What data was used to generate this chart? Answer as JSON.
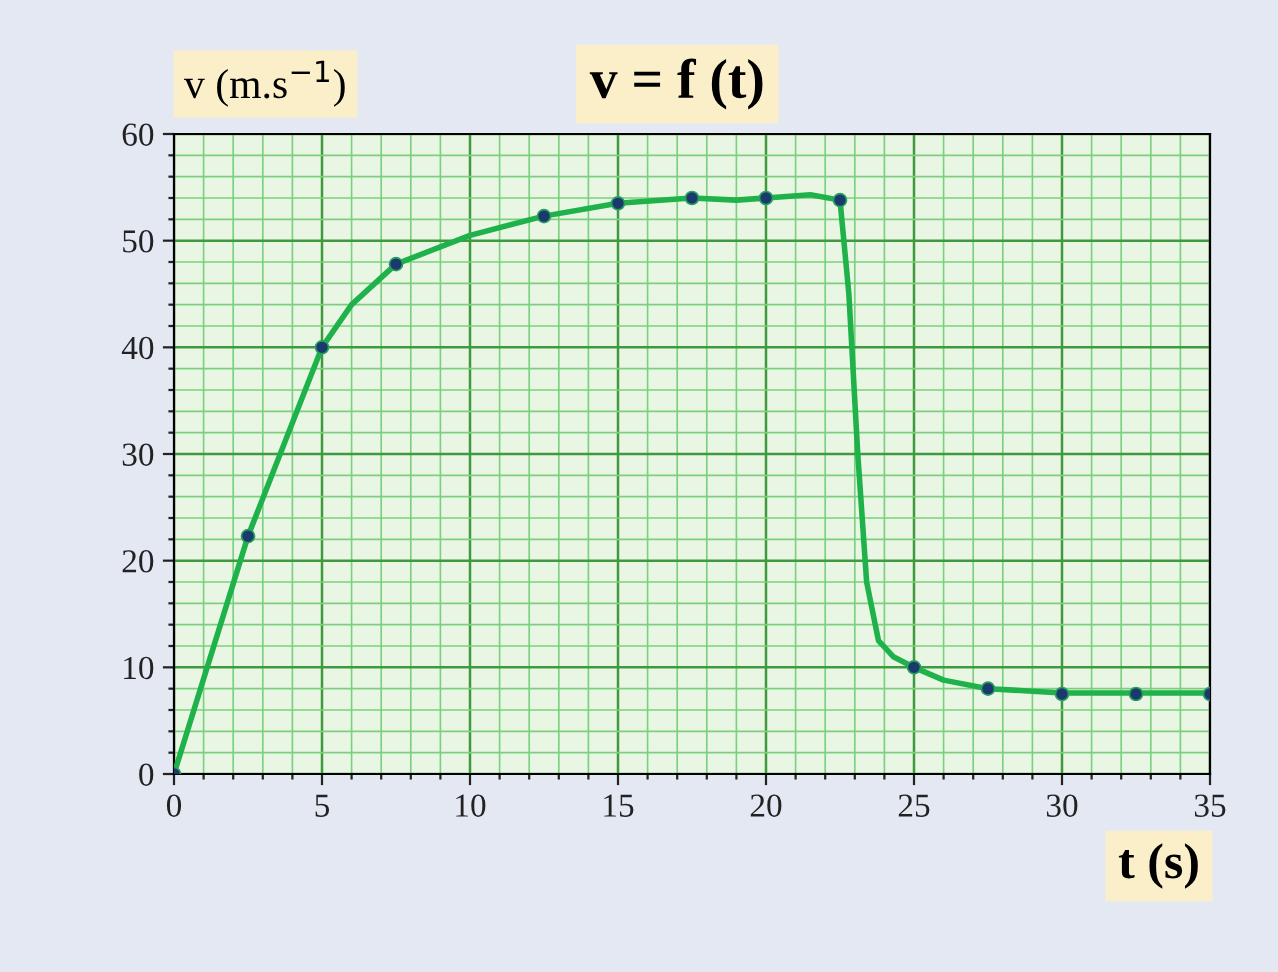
{
  "chart_data": {
    "type": "line",
    "title": "v = f (t)",
    "xlabel": "t (s)",
    "ylabel": "v (m.s$^{−1}$)",
    "xlim": [
      0,
      35
    ],
    "ylim": [
      0,
      60
    ],
    "xticks": [
      0,
      {
        "value": 1,
        "label": null
      },
      {
        "value": 2,
        "label": null
      },
      {
        "value": 3,
        "label": null
      },
      {
        "value": 4,
        "label": null
      },
      5,
      {
        "value": 6,
        "label": null
      },
      {
        "value": 7,
        "label": null
      },
      {
        "value": 8,
        "label": null
      },
      {
        "value": 9,
        "label": null
      },
      10,
      {
        "value": 11,
        "label": null
      },
      {
        "value": 12,
        "label": null
      },
      {
        "value": 13,
        "label": null
      },
      {
        "value": 14,
        "label": null
      },
      15,
      {
        "value": 16,
        "label": null
      },
      {
        "value": 17,
        "label": null
      },
      {
        "value": 18,
        "label": null
      },
      {
        "value": 19,
        "label": null
      },
      20,
      {
        "value": 21,
        "label": null
      },
      {
        "value": 22,
        "label": null
      },
      {
        "value": 23,
        "label": null
      },
      {
        "value": 24,
        "label": null
      },
      25,
      {
        "value": 26,
        "label": null
      },
      {
        "value": 27,
        "label": null
      },
      {
        "value": 28,
        "label": null
      },
      {
        "value": 29,
        "label": null
      },
      30,
      {
        "value": 31,
        "label": null
      },
      {
        "value": 32,
        "label": null
      },
      {
        "value": 33,
        "label": null
      },
      {
        "value": 34,
        "label": null
      },
      35
    ],
    "yticks": [
      0,
      {
        "value": 2,
        "label": null
      },
      {
        "value": 4,
        "label": null
      },
      {
        "value": 6,
        "label": null
      },
      {
        "value": 8,
        "label": null
      },
      10,
      {
        "value": 12,
        "label": null
      },
      {
        "value": 14,
        "label": null
      },
      {
        "value": 16,
        "label": null
      },
      {
        "value": 18,
        "label": null
      },
      20,
      {
        "value": 22,
        "label": null
      },
      {
        "value": 24,
        "label": null
      },
      {
        "value": 26,
        "label": null
      },
      {
        "value": 28,
        "label": null
      },
      30,
      {
        "value": 32,
        "label": null
      },
      {
        "value": 34,
        "label": null
      },
      {
        "value": 36,
        "label": null
      },
      {
        "value": 38,
        "label": null
      },
      40,
      {
        "value": 42,
        "label": null
      },
      {
        "value": 44,
        "label": null
      },
      {
        "value": 46,
        "label": null
      },
      {
        "value": 48,
        "label": null
      },
      50,
      {
        "value": 52,
        "label": null
      },
      {
        "value": 54,
        "label": null
      },
      {
        "value": 56,
        "label": null
      },
      {
        "value": 58,
        "label": null
      },
      60
    ],
    "grid": true,
    "series": [
      {
        "color": "#1fb24a",
        "marker": "none",
        "x": [
          0,
          2.5,
          5,
          6,
          7.5,
          10,
          12.5,
          15,
          17.5,
          19,
          20,
          21.5,
          22.5,
          22.8,
          23.1,
          23.4,
          23.8,
          24.3,
          25,
          26,
          27.5,
          30,
          35
        ],
        "values": [
          0,
          22.3,
          40,
          44,
          47.8,
          50.5,
          52.3,
          53.5,
          54,
          53.8,
          54,
          54.3,
          53.8,
          45,
          30,
          18,
          12.5,
          11,
          10,
          8.8,
          8,
          7.6,
          7.6
        ]
      },
      {
        "type": "scatter",
        "color": "#1a3a6e",
        "marker": "circle",
        "x": [
          0,
          2.5,
          5,
          7.5,
          12.5,
          15,
          17.5,
          20,
          22.5,
          25,
          27.5,
          30,
          32.5,
          35
        ],
        "values": [
          0,
          22.3,
          40,
          47.8,
          52.3,
          53.5,
          54,
          54,
          53.8,
          10,
          8,
          7.5,
          7.5,
          7.5
        ]
      }
    ]
  }
}
